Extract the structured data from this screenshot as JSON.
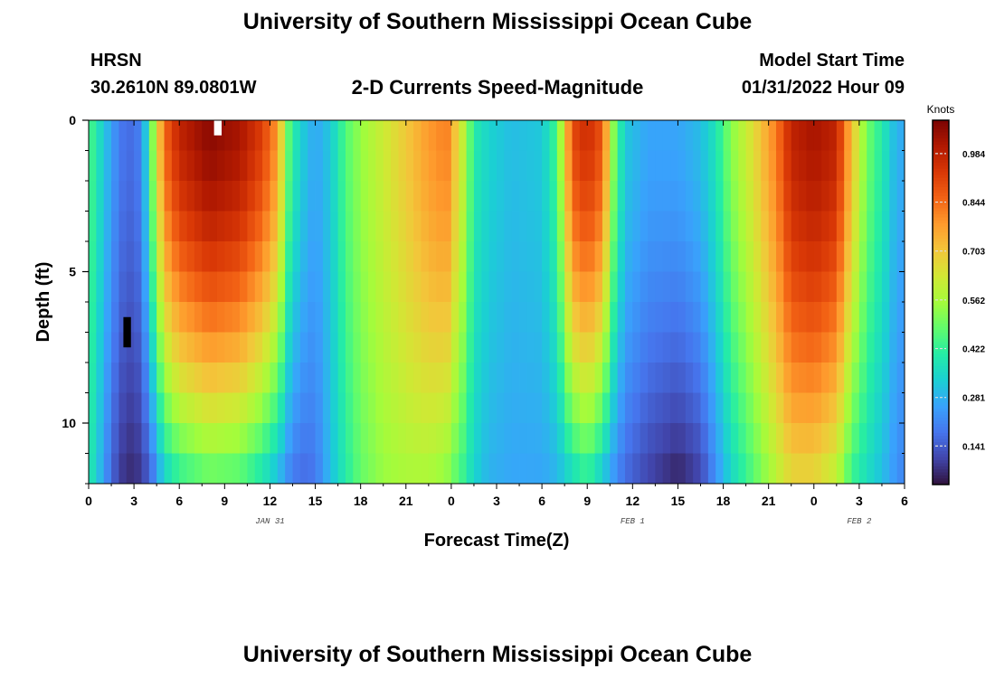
{
  "page": {
    "title": "University of Southern Mississippi Ocean Cube",
    "footer_title": "University of Southern Mississippi Ocean Cube"
  },
  "header": {
    "station": "HRSN",
    "coords": "30.2610N  89.0801W",
    "subtitle": "2-D Currents Speed-Magnitude",
    "model_label": "Model Start Time",
    "model_time": "01/31/2022 Hour 09"
  },
  "chart_data": {
    "type": "heatmap",
    "title": "2-D Currents Speed-Magnitude",
    "xlabel": "Forecast Time(Z)",
    "ylabel": "Depth (ft)",
    "x_hours": [
      0,
      54
    ],
    "x_tick_labels": [
      "0",
      "3",
      "6",
      "9",
      "12",
      "15",
      "18",
      "21",
      "0",
      "3",
      "6",
      "9",
      "12",
      "15",
      "18",
      "21",
      "0",
      "3",
      "6"
    ],
    "date_labels": [
      {
        "label": "JAN 31",
        "hour": 12
      },
      {
        "label": "FEB 1",
        "hour": 36
      },
      {
        "label": "FEB 2",
        "hour": 51
      }
    ],
    "ylim": [
      0,
      12
    ],
    "y_tick_labels": [
      "0",
      "5",
      "10"
    ],
    "y_tick_values": [
      0,
      5,
      10
    ],
    "colorbar": {
      "title": "Knots",
      "min": 0.03,
      "max": 1.08,
      "ticks": [
        "0.984",
        "0.844",
        "0.703",
        "0.562",
        "0.422",
        "0.281",
        "0.141"
      ],
      "tick_values": [
        0.984,
        0.844,
        0.703,
        0.562,
        0.422,
        0.281,
        0.141
      ],
      "colors": [
        "#30123b",
        "#4145ab",
        "#4675ed",
        "#39a2fc",
        "#1bcfd4",
        "#24eca6",
        "#61fc6c",
        "#a4fc3b",
        "#d1e834",
        "#f3c63a",
        "#fe9b2d",
        "#f36315",
        "#d93806",
        "#b11901",
        "#7a0403"
      ]
    },
    "speed_profile_knots": [
      {
        "hour": 0.0,
        "surface": 0.46,
        "bottom": 0.4
      },
      {
        "hour": 0.5,
        "surface": 0.4,
        "bottom": 0.34
      },
      {
        "hour": 1.0,
        "surface": 0.32,
        "bottom": 0.24
      },
      {
        "hour": 1.8,
        "surface": 0.22,
        "bottom": 0.12
      },
      {
        "hour": 2.5,
        "surface": 0.16,
        "bottom": 0.06
      },
      {
        "hour": 3.5,
        "surface": 0.2,
        "bottom": 0.08
      },
      {
        "hour": 4.3,
        "surface": 0.55,
        "bottom": 0.18
      },
      {
        "hour": 5.0,
        "surface": 0.85,
        "bottom": 0.32
      },
      {
        "hour": 6.0,
        "surface": 0.98,
        "bottom": 0.4
      },
      {
        "hour": 8.0,
        "surface": 1.06,
        "bottom": 0.46
      },
      {
        "hour": 10.0,
        "surface": 1.02,
        "bottom": 0.44
      },
      {
        "hour": 11.5,
        "surface": 0.92,
        "bottom": 0.36
      },
      {
        "hour": 12.5,
        "surface": 0.78,
        "bottom": 0.28
      },
      {
        "hour": 13.3,
        "surface": 0.45,
        "bottom": 0.2
      },
      {
        "hour": 14.0,
        "surface": 0.34,
        "bottom": 0.16
      },
      {
        "hour": 15.0,
        "surface": 0.26,
        "bottom": 0.18
      },
      {
        "hour": 16.0,
        "surface": 0.32,
        "bottom": 0.3
      },
      {
        "hour": 17.0,
        "surface": 0.46,
        "bottom": 0.4
      },
      {
        "hour": 18.0,
        "surface": 0.54,
        "bottom": 0.48
      },
      {
        "hour": 19.5,
        "surface": 0.62,
        "bottom": 0.54
      },
      {
        "hour": 21.0,
        "surface": 0.7,
        "bottom": 0.56
      },
      {
        "hour": 22.5,
        "surface": 0.78,
        "bottom": 0.56
      },
      {
        "hour": 23.7,
        "surface": 0.82,
        "bottom": 0.52
      },
      {
        "hour": 24.8,
        "surface": 0.6,
        "bottom": 0.42
      },
      {
        "hour": 25.5,
        "surface": 0.4,
        "bottom": 0.34
      },
      {
        "hour": 26.5,
        "surface": 0.34,
        "bottom": 0.28
      },
      {
        "hour": 28.0,
        "surface": 0.3,
        "bottom": 0.26
      },
      {
        "hour": 30.0,
        "surface": 0.32,
        "bottom": 0.26
      },
      {
        "hour": 31.0,
        "surface": 0.45,
        "bottom": 0.28
      },
      {
        "hour": 32.0,
        "surface": 0.9,
        "bottom": 0.34
      },
      {
        "hour": 33.0,
        "surface": 0.96,
        "bottom": 0.4
      },
      {
        "hour": 34.0,
        "surface": 0.88,
        "bottom": 0.3
      },
      {
        "hour": 34.8,
        "surface": 0.5,
        "bottom": 0.22
      },
      {
        "hour": 35.5,
        "surface": 0.32,
        "bottom": 0.16
      },
      {
        "hour": 37.0,
        "surface": 0.26,
        "bottom": 0.1
      },
      {
        "hour": 39.0,
        "surface": 0.26,
        "bottom": 0.05
      },
      {
        "hour": 40.5,
        "surface": 0.3,
        "bottom": 0.1
      },
      {
        "hour": 41.5,
        "surface": 0.38,
        "bottom": 0.22
      },
      {
        "hour": 42.5,
        "surface": 0.52,
        "bottom": 0.34
      },
      {
        "hour": 44.0,
        "surface": 0.66,
        "bottom": 0.46
      },
      {
        "hour": 45.5,
        "surface": 0.82,
        "bottom": 0.58
      },
      {
        "hour": 46.5,
        "surface": 0.98,
        "bottom": 0.66
      },
      {
        "hour": 48.0,
        "surface": 1.02,
        "bottom": 0.66
      },
      {
        "hour": 49.5,
        "surface": 0.98,
        "bottom": 0.58
      },
      {
        "hour": 50.5,
        "surface": 0.72,
        "bottom": 0.42
      },
      {
        "hour": 51.5,
        "surface": 0.5,
        "bottom": 0.36
      },
      {
        "hour": 52.5,
        "surface": 0.4,
        "bottom": 0.3
      },
      {
        "hour": 53.3,
        "surface": 0.3,
        "bottom": 0.24
      },
      {
        "hour": 54.0,
        "surface": 0.26,
        "bottom": 0.2
      }
    ],
    "missing_cells": [
      {
        "hour_start": 8.3,
        "hour_end": 8.8,
        "depth_start": 0.0,
        "depth_end": 0.5,
        "color": "#ffffff"
      },
      {
        "hour_start": 2.3,
        "hour_end": 2.8,
        "depth_start": 6.5,
        "depth_end": 7.5,
        "color": "#000000"
      }
    ]
  }
}
